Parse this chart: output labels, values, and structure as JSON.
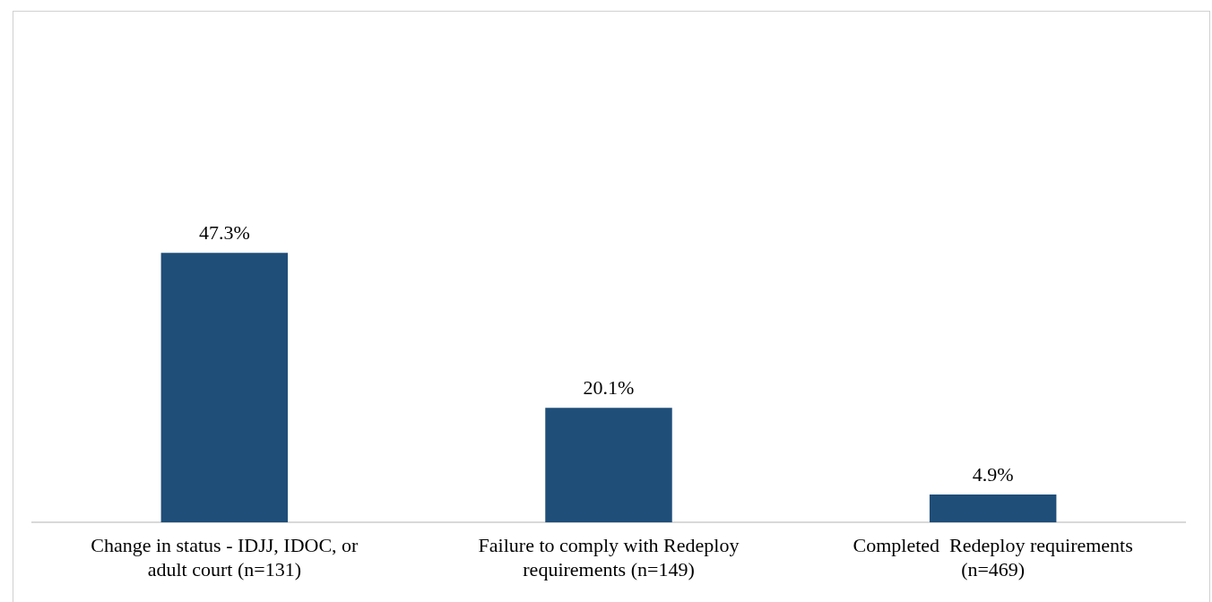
{
  "chart_data": {
    "type": "bar",
    "categories": [
      "Change in status - IDJJ, IDOC, or adult court (n=131)",
      "Failure to comply with Redeploy requirements (n=149)",
      "Completed  Redeploy requirements (n=469)"
    ],
    "values": [
      47.3,
      20.1,
      4.9
    ],
    "value_labels": [
      "47.3%",
      "20.1%",
      "4.9%"
    ],
    "color": "#1f4e79",
    "grid": false,
    "legend": false
  }
}
